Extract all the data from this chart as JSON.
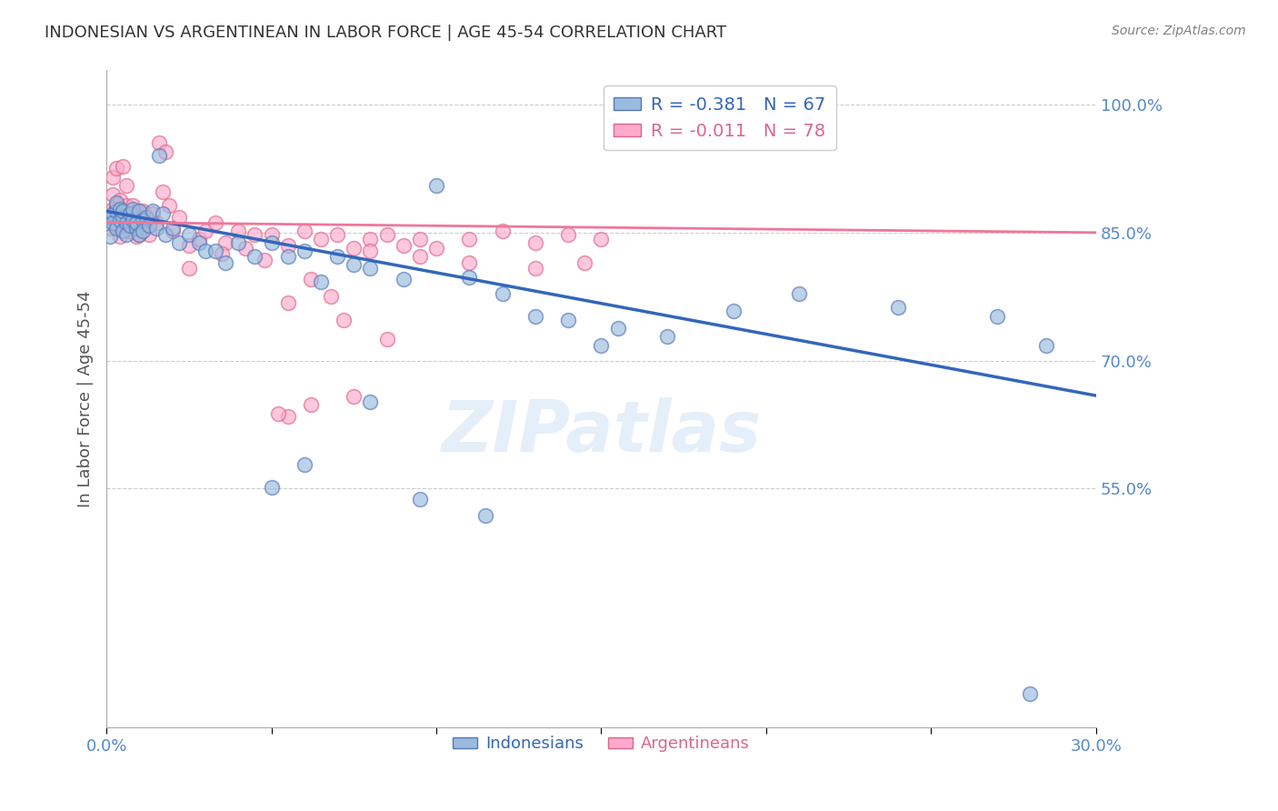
{
  "title": "INDONESIAN VS ARGENTINEAN IN LABOR FORCE | AGE 45-54 CORRELATION CHART",
  "source": "Source: ZipAtlas.com",
  "ylabel": "In Labor Force | Age 45-54",
  "xlim": [
    0.0,
    0.3
  ],
  "ylim": [
    0.27,
    1.04
  ],
  "yticks": [
    0.55,
    0.7,
    0.85,
    1.0
  ],
  "ytick_labels": [
    "55.0%",
    "70.0%",
    "85.0%",
    "100.0%"
  ],
  "xticks": [
    0.0,
    0.05,
    0.1,
    0.15,
    0.2,
    0.25,
    0.3
  ],
  "xtick_labels": [
    "0.0%",
    "",
    "",
    "",
    "",
    "",
    "30.0%"
  ],
  "blue_color": "#99BBDD",
  "pink_color": "#FFAACC",
  "blue_edge_color": "#5577BB",
  "pink_edge_color": "#DD6688",
  "blue_line_color": "#3366BB",
  "pink_line_color": "#EE7799",
  "legend_label_blue": "Indonesians",
  "legend_label_pink": "Argentineans",
  "blue_r_text": "R = -0.381",
  "blue_n_text": "N = 67",
  "pink_r_text": "R = -0.011",
  "pink_n_text": "N = 78",
  "watermark": "ZIPatlas",
  "blue_intercept": 0.875,
  "blue_slope": -0.72,
  "pink_intercept": 0.862,
  "pink_slope": -0.04,
  "background_color": "#FFFFFF",
  "grid_color": "#CCCCCC",
  "axis_color": "#AAAAAA",
  "title_color": "#333333",
  "ylabel_color": "#555555",
  "tick_color": "#5588CC",
  "blue_scatter_x": [
    0.001,
    0.001,
    0.002,
    0.002,
    0.003,
    0.003,
    0.003,
    0.004,
    0.004,
    0.005,
    0.005,
    0.005,
    0.006,
    0.006,
    0.007,
    0.007,
    0.008,
    0.008,
    0.009,
    0.009,
    0.01,
    0.01,
    0.011,
    0.011,
    0.012,
    0.013,
    0.014,
    0.015,
    0.016,
    0.017,
    0.018,
    0.02,
    0.022,
    0.025,
    0.028,
    0.03,
    0.033,
    0.036,
    0.04,
    0.045,
    0.05,
    0.055,
    0.06,
    0.065,
    0.07,
    0.075,
    0.08,
    0.09,
    0.1,
    0.11,
    0.12,
    0.13,
    0.14,
    0.155,
    0.17,
    0.19,
    0.21,
    0.24,
    0.27,
    0.285,
    0.05,
    0.06,
    0.08,
    0.095,
    0.115,
    0.15,
    0.28
  ],
  "blue_scatter_y": [
    0.868,
    0.845,
    0.872,
    0.862,
    0.875,
    0.855,
    0.885,
    0.865,
    0.878,
    0.868,
    0.852,
    0.875,
    0.862,
    0.848,
    0.872,
    0.858,
    0.865,
    0.878,
    0.855,
    0.862,
    0.875,
    0.848,
    0.865,
    0.852,
    0.868,
    0.858,
    0.875,
    0.855,
    0.94,
    0.872,
    0.848,
    0.855,
    0.838,
    0.848,
    0.838,
    0.828,
    0.828,
    0.815,
    0.838,
    0.822,
    0.838,
    0.822,
    0.828,
    0.792,
    0.822,
    0.812,
    0.808,
    0.795,
    0.905,
    0.798,
    0.778,
    0.752,
    0.748,
    0.738,
    0.728,
    0.758,
    0.778,
    0.762,
    0.752,
    0.718,
    0.552,
    0.578,
    0.652,
    0.538,
    0.518,
    0.718,
    0.31
  ],
  "pink_scatter_x": [
    0.001,
    0.001,
    0.002,
    0.002,
    0.002,
    0.003,
    0.003,
    0.003,
    0.004,
    0.004,
    0.004,
    0.005,
    0.005,
    0.005,
    0.006,
    0.006,
    0.006,
    0.007,
    0.007,
    0.008,
    0.008,
    0.009,
    0.009,
    0.01,
    0.01,
    0.011,
    0.011,
    0.012,
    0.013,
    0.014,
    0.015,
    0.016,
    0.017,
    0.018,
    0.019,
    0.02,
    0.022,
    0.025,
    0.028,
    0.03,
    0.033,
    0.036,
    0.04,
    0.045,
    0.05,
    0.055,
    0.06,
    0.065,
    0.07,
    0.075,
    0.08,
    0.085,
    0.09,
    0.095,
    0.1,
    0.11,
    0.12,
    0.13,
    0.14,
    0.15,
    0.025,
    0.035,
    0.048,
    0.055,
    0.068,
    0.08,
    0.095,
    0.11,
    0.13,
    0.145,
    0.055,
    0.062,
    0.075,
    0.085,
    0.042,
    0.052,
    0.062,
    0.072
  ],
  "pink_scatter_y": [
    0.868,
    0.855,
    0.895,
    0.878,
    0.915,
    0.882,
    0.862,
    0.925,
    0.872,
    0.888,
    0.845,
    0.875,
    0.858,
    0.928,
    0.882,
    0.862,
    0.905,
    0.872,
    0.852,
    0.882,
    0.858,
    0.875,
    0.845,
    0.868,
    0.848,
    0.875,
    0.858,
    0.865,
    0.848,
    0.872,
    0.862,
    0.955,
    0.898,
    0.945,
    0.882,
    0.852,
    0.868,
    0.835,
    0.842,
    0.852,
    0.862,
    0.838,
    0.852,
    0.848,
    0.848,
    0.835,
    0.852,
    0.842,
    0.848,
    0.832,
    0.842,
    0.848,
    0.835,
    0.842,
    0.832,
    0.842,
    0.852,
    0.838,
    0.848,
    0.842,
    0.808,
    0.825,
    0.818,
    0.768,
    0.775,
    0.828,
    0.822,
    0.815,
    0.808,
    0.815,
    0.635,
    0.648,
    0.658,
    0.725,
    0.832,
    0.638,
    0.795,
    0.748
  ]
}
